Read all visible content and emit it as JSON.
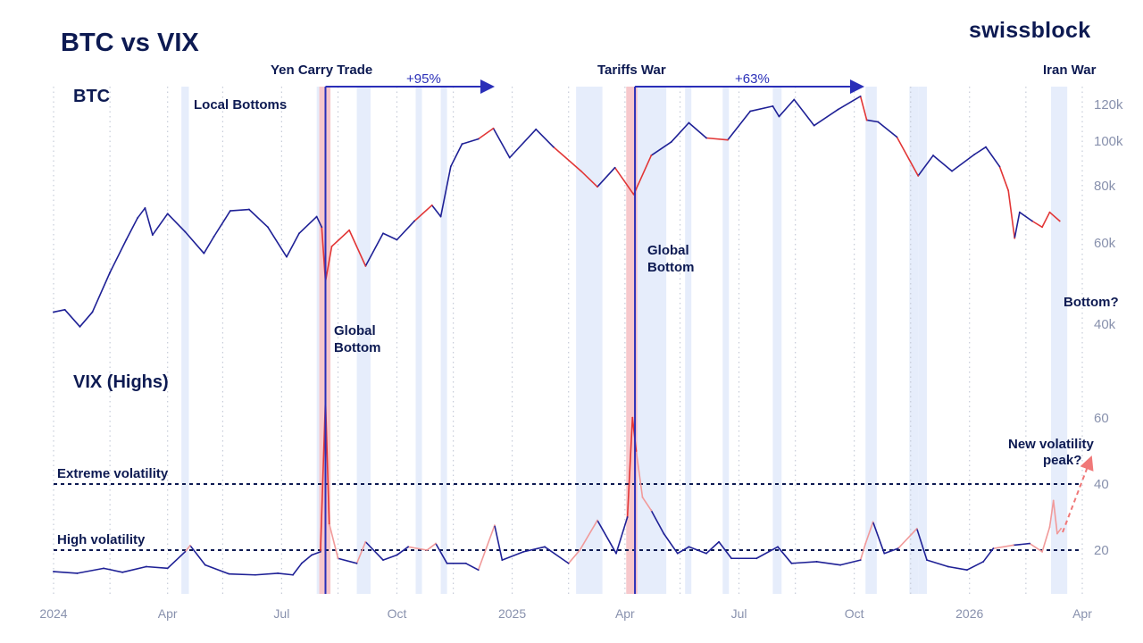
{
  "title": "BTC vs VIX",
  "brand": "swissblock",
  "panel_labels": {
    "btc": "BTC",
    "vix": "VIX (Highs)"
  },
  "colors": {
    "navy": "#0d1a52",
    "line_blue": "#1f2196",
    "line_red": "#e23636",
    "line_light_red": "#f19a9a",
    "shade_blue": "#e6edfb",
    "shade_red": "#f7c8cc",
    "vline_blue": "#2a2fb8",
    "axis_gray": "#8891ad"
  },
  "annotations": {
    "yen_carry": "Yen Carry Trade",
    "tariffs": "Tariffs War",
    "iran": "Iran War",
    "local_bottoms": "Local Bottoms",
    "gain_1": "+95%",
    "gain_2": "+63%",
    "global_bottom_1a": "Global",
    "global_bottom_1b": "Bottom",
    "global_bottom_2a": "Global",
    "global_bottom_2b": "Bottom",
    "bottom_q": "Bottom?",
    "new_vol_a": "New volatility",
    "new_vol_b": "peak?",
    "extreme_vol": "Extreme volatility",
    "high_vol": "High volatility"
  },
  "chart_data": [
    {
      "type": "line",
      "name": "BTC",
      "y_scale": "log",
      "ylim": [
        35000,
        125000
      ],
      "y_ticks": [
        40000,
        60000,
        80000,
        100000,
        120000
      ],
      "y_tick_labels": [
        "40k",
        "60k",
        "80k",
        "100k",
        "120k"
      ],
      "x_ticks": [
        "2024",
        "Apr",
        "Jul",
        "Oct",
        "2025",
        "Apr",
        "Jul",
        "Oct",
        "2026",
        "Apr"
      ],
      "x_range": [
        "2024-01-01",
        "2026-04-01"
      ],
      "points": [
        [
          "2024-01-01",
          42500
        ],
        [
          "2024-01-10",
          43000
        ],
        [
          "2024-01-22",
          39500
        ],
        [
          "2024-02-01",
          42500
        ],
        [
          "2024-02-15",
          51800
        ],
        [
          "2024-02-28",
          61000
        ],
        [
          "2024-03-08",
          68000
        ],
        [
          "2024-03-14",
          71500
        ],
        [
          "2024-03-20",
          62500
        ],
        [
          "2024-04-01",
          69500
        ],
        [
          "2024-04-15",
          63500
        ],
        [
          "2024-04-30",
          57000
        ],
        [
          "2024-05-08",
          62000
        ],
        [
          "2024-05-21",
          70500
        ],
        [
          "2024-06-05",
          71000
        ],
        [
          "2024-06-20",
          65000
        ],
        [
          "2024-07-05",
          56000
        ],
        [
          "2024-07-15",
          63000
        ],
        [
          "2024-07-29",
          68500
        ],
        [
          "2024-08-02",
          65000
        ],
        [
          "2024-08-05",
          49500
        ],
        [
          "2024-08-10",
          59000
        ],
        [
          "2024-08-24",
          64000
        ],
        [
          "2024-09-06",
          53500
        ],
        [
          "2024-09-20",
          63000
        ],
        [
          "2024-10-01",
          61000
        ],
        [
          "2024-10-15",
          67000
        ],
        [
          "2024-10-29",
          72500
        ],
        [
          "2024-11-05",
          68500
        ],
        [
          "2024-11-13",
          88000
        ],
        [
          "2024-11-22",
          98500
        ],
        [
          "2024-12-05",
          101000
        ],
        [
          "2024-12-17",
          106500
        ],
        [
          "2024-12-30",
          92000
        ],
        [
          "2025-01-20",
          106000
        ],
        [
          "2025-02-03",
          97000
        ],
        [
          "2025-02-25",
          86000
        ],
        [
          "2025-03-10",
          79500
        ],
        [
          "2025-03-24",
          87500
        ],
        [
          "2025-04-08",
          76500
        ],
        [
          "2025-04-22",
          93000
        ],
        [
          "2025-05-08",
          99500
        ],
        [
          "2025-05-22",
          109500
        ],
        [
          "2025-06-05",
          101500
        ],
        [
          "2025-06-22",
          100500
        ],
        [
          "2025-07-10",
          116000
        ],
        [
          "2025-07-28",
          119000
        ],
        [
          "2025-08-02",
          113000
        ],
        [
          "2025-08-14",
          123000
        ],
        [
          "2025-08-30",
          108000
        ],
        [
          "2025-09-18",
          117000
        ],
        [
          "2025-10-06",
          125000
        ],
        [
          "2025-10-11",
          111000
        ],
        [
          "2025-10-20",
          110000
        ],
        [
          "2025-11-04",
          102000
        ],
        [
          "2025-11-21",
          84000
        ],
        [
          "2025-12-03",
          93000
        ],
        [
          "2025-12-18",
          86000
        ],
        [
          "2026-01-05",
          93500
        ],
        [
          "2026-01-14",
          97000
        ],
        [
          "2026-01-25",
          88000
        ],
        [
          "2026-02-01",
          78000
        ],
        [
          "2026-02-06",
          61500
        ],
        [
          "2026-02-10",
          70000
        ],
        [
          "2026-02-20",
          67000
        ],
        [
          "2026-02-28",
          65000
        ],
        [
          "2026-03-06",
          70000
        ],
        [
          "2026-03-14",
          67000
        ]
      ]
    },
    {
      "type": "line",
      "name": "VIX (Highs)",
      "ylim": [
        0,
        75
      ],
      "y_ticks": [
        20,
        40,
        60
      ],
      "y_tick_labels": [
        "20",
        "40",
        "60"
      ],
      "reference_lines": [
        {
          "value": 40,
          "label": "Extreme volatility"
        },
        {
          "value": 20,
          "label": "High volatility"
        }
      ],
      "points": [
        [
          "2024-01-01",
          13.5
        ],
        [
          "2024-01-20",
          13
        ],
        [
          "2024-02-10",
          14.5
        ],
        [
          "2024-02-25",
          13.3
        ],
        [
          "2024-03-15",
          15
        ],
        [
          "2024-04-01",
          14.5
        ],
        [
          "2024-04-15",
          19.5
        ],
        [
          "2024-04-19",
          21.4
        ],
        [
          "2024-05-01",
          15.5
        ],
        [
          "2024-05-20",
          12.8
        ],
        [
          "2024-06-10",
          12.5
        ],
        [
          "2024-06-28",
          13
        ],
        [
          "2024-07-10",
          12.5
        ],
        [
          "2024-07-17",
          16
        ],
        [
          "2024-07-25",
          18.5
        ],
        [
          "2024-08-01",
          19.5
        ],
        [
          "2024-08-05",
          65.7
        ],
        [
          "2024-08-08",
          28
        ],
        [
          "2024-08-15",
          17.5
        ],
        [
          "2024-08-30",
          16
        ],
        [
          "2024-09-06",
          22.5
        ],
        [
          "2024-09-20",
          17
        ],
        [
          "2024-10-01",
          18.5
        ],
        [
          "2024-10-10",
          21
        ],
        [
          "2024-10-25",
          20
        ],
        [
          "2024-11-01",
          22
        ],
        [
          "2024-11-10",
          16
        ],
        [
          "2024-11-25",
          16
        ],
        [
          "2024-12-05",
          14
        ],
        [
          "2024-12-18",
          27.5
        ],
        [
          "2024-12-24",
          17
        ],
        [
          "2025-01-10",
          19.5
        ],
        [
          "2025-01-27",
          21
        ],
        [
          "2025-02-15",
          16
        ],
        [
          "2025-02-24",
          20
        ],
        [
          "2025-03-10",
          29
        ],
        [
          "2025-03-25",
          19
        ],
        [
          "2025-04-03",
          30
        ],
        [
          "2025-04-07",
          60.1
        ],
        [
          "2025-04-10",
          50
        ],
        [
          "2025-04-15",
          36
        ],
        [
          "2025-04-22",
          32
        ],
        [
          "2025-05-02",
          25
        ],
        [
          "2025-05-13",
          19
        ],
        [
          "2025-05-22",
          21
        ],
        [
          "2025-06-05",
          19
        ],
        [
          "2025-06-15",
          22.5
        ],
        [
          "2025-06-25",
          17.5
        ],
        [
          "2025-07-15",
          17.5
        ],
        [
          "2025-08-01",
          21
        ],
        [
          "2025-08-12",
          16
        ],
        [
          "2025-09-01",
          16.5
        ],
        [
          "2025-09-20",
          15.5
        ],
        [
          "2025-10-06",
          17
        ],
        [
          "2025-10-10",
          22
        ],
        [
          "2025-10-16",
          28.5
        ],
        [
          "2025-10-25",
          19
        ],
        [
          "2025-11-05",
          20.5
        ],
        [
          "2025-11-20",
          26.5
        ],
        [
          "2025-11-28",
          17
        ],
        [
          "2025-12-15",
          15
        ],
        [
          "2025-12-30",
          14
        ],
        [
          "2026-01-12",
          16.5
        ],
        [
          "2026-01-20",
          20.5
        ],
        [
          "2026-02-05",
          21.5
        ],
        [
          "2026-02-18",
          22
        ],
        [
          "2026-02-28",
          19.5
        ],
        [
          "2026-03-06",
          27
        ],
        [
          "2026-03-09",
          35
        ],
        [
          "2026-03-12",
          25
        ],
        [
          "2026-03-15",
          26.5
        ]
      ]
    }
  ]
}
